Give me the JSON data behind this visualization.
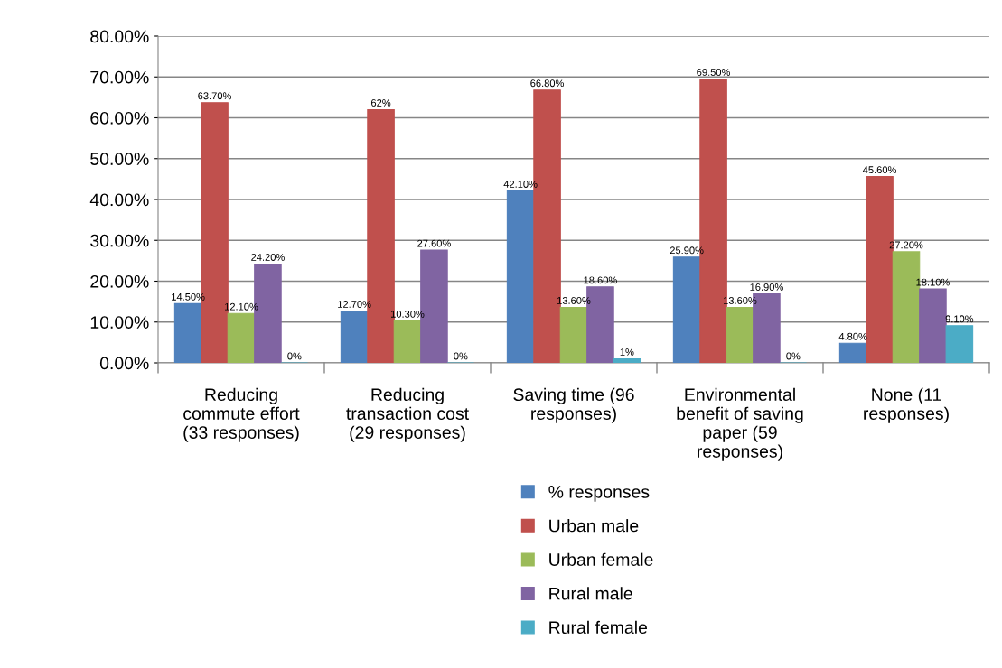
{
  "chart_data": {
    "type": "bar",
    "categories": [
      "Reducing\ncommute effort\n(33 responses)",
      "Reducing\ntransaction cost\n(29 responses)",
      "Saving time (96\nresponses)",
      "Environmental\nbenefit of saving\npaper (59\nresponses)",
      "None (11\nresponses)"
    ],
    "series": [
      {
        "name": "% responses",
        "color": "#4f81bd",
        "values": [
          14.5,
          12.7,
          42.1,
          25.9,
          4.8
        ],
        "value_labels": [
          "14.50%",
          "12.70%",
          "42.10%",
          "25.90%",
          "4.80%"
        ]
      },
      {
        "name": "Urban male",
        "color": "#c0504d",
        "values": [
          63.7,
          62,
          66.8,
          69.5,
          45.6
        ],
        "value_labels": [
          "63.70%",
          "62%",
          "66.80%",
          "69.50%",
          "45.60%"
        ]
      },
      {
        "name": "Urban female",
        "color": "#9bbb59",
        "values": [
          12.1,
          10.3,
          13.6,
          13.6,
          27.2
        ],
        "value_labels": [
          "12.10%",
          "10.30%",
          "13.60%",
          "13.60%",
          "27.20%"
        ]
      },
      {
        "name": "Rural male",
        "color": "#8064a2",
        "values": [
          24.2,
          27.6,
          18.6,
          16.9,
          18.1
        ],
        "value_labels": [
          "24.20%",
          "27.60%",
          "18.60%",
          "16.90%",
          "18.10%"
        ]
      },
      {
        "name": "Rural female",
        "color": "#4bacc6",
        "values": [
          0,
          0,
          1,
          0,
          9.1
        ],
        "value_labels": [
          "0%",
          "0%",
          "1%",
          "0%",
          "9.10%"
        ]
      }
    ],
    "ylim": [
      0,
      80
    ],
    "yticks": [
      {
        "value": 0,
        "label": "0.00%"
      },
      {
        "value": 10,
        "label": "10.00%"
      },
      {
        "value": 20,
        "label": "20.00%"
      },
      {
        "value": 30,
        "label": "30.00%"
      },
      {
        "value": 40,
        "label": "40.00%"
      },
      {
        "value": 50,
        "label": "50.00%"
      },
      {
        "value": 60,
        "label": "60.00%"
      },
      {
        "value": 70,
        "label": "70.00%"
      },
      {
        "value": 80,
        "label": "80.00%"
      }
    ],
    "grid": "y",
    "legend": "bottom"
  }
}
